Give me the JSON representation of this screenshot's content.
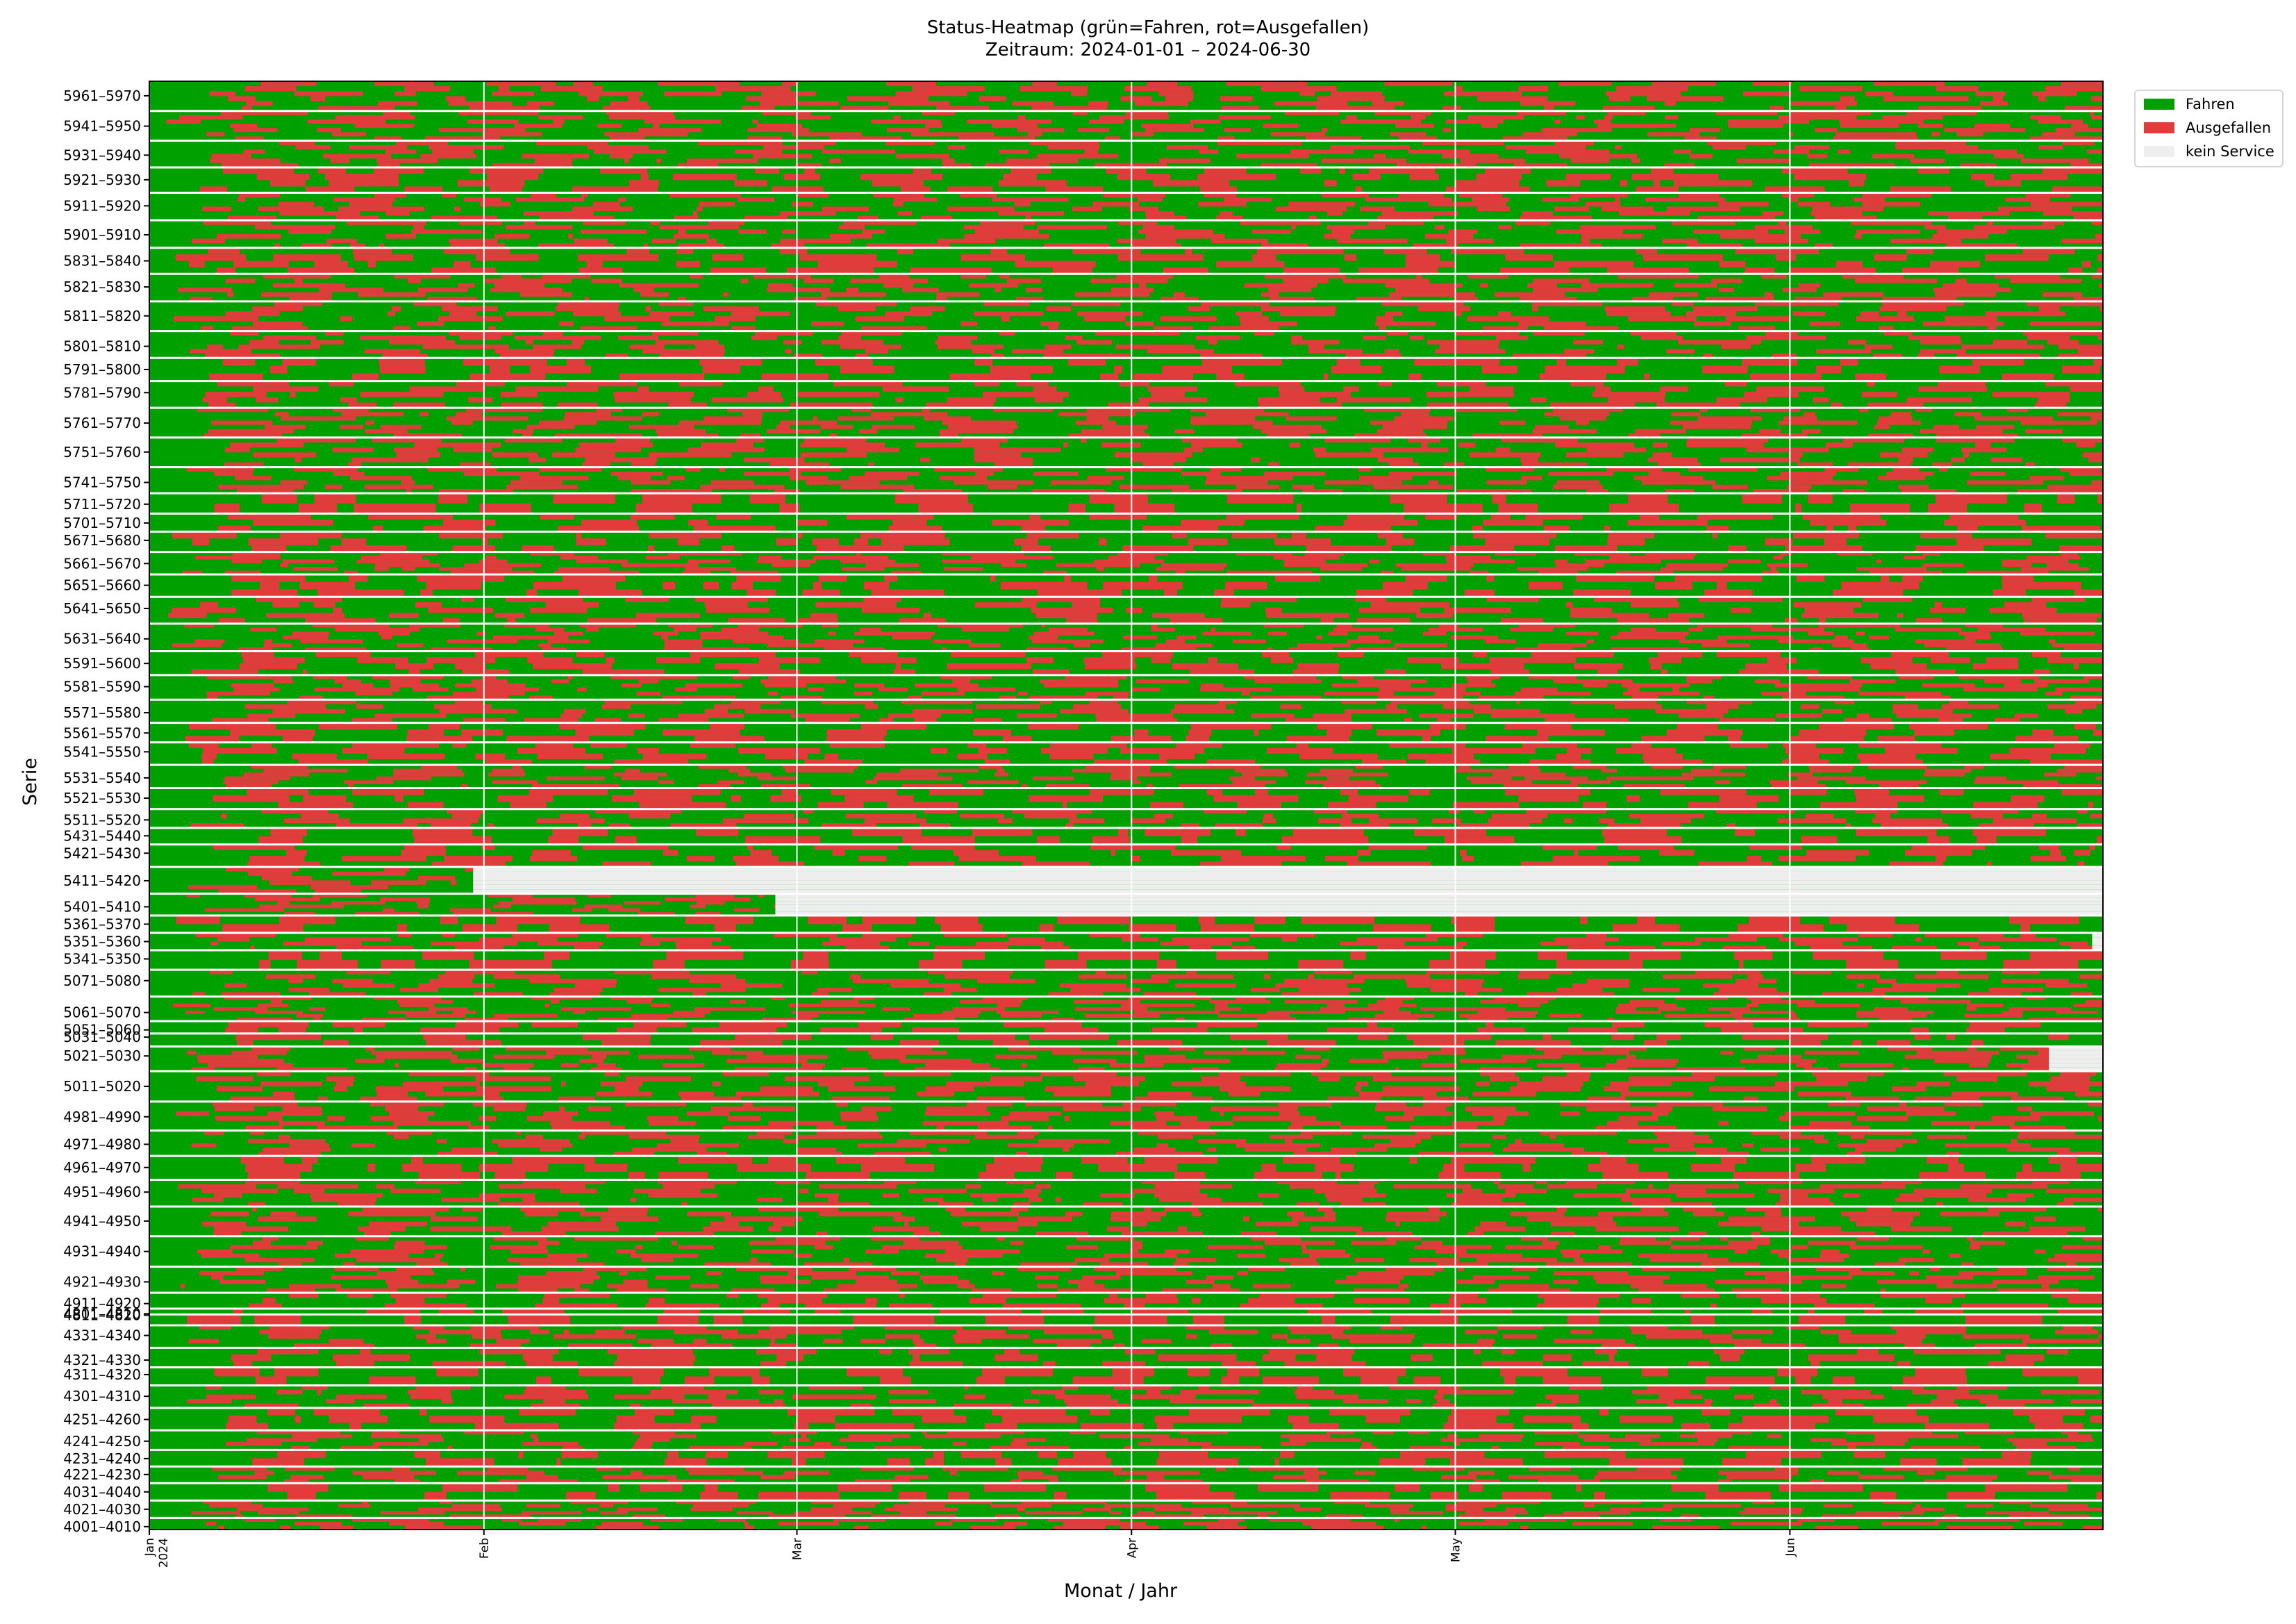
{
  "title_lines": [
    "Status-Heatmap (grün=Fahren, rot=Ausgefallen)",
    "Zeitraum: 2024-01-01 – 2024-06-30"
  ],
  "chart_data": {
    "type": "heatmap",
    "title": "Status-Heatmap (grün=Fahren, rot=Ausgefallen)",
    "subtitle": "Zeitraum: 2024-01-01 – 2024-06-30",
    "xlabel": "Monat / Jahr",
    "ylabel": "Serie",
    "xlim": [
      "2024-01-01",
      "2024-06-30"
    ],
    "x_ticks": [
      {
        "date": "2024-01-01",
        "label": "Jan\n2024"
      },
      {
        "date": "2024-02-01",
        "label": "Feb"
      },
      {
        "date": "2024-03-01",
        "label": "Mar"
      },
      {
        "date": "2024-04-01",
        "label": "Apr"
      },
      {
        "date": "2024-05-01",
        "label": "May"
      },
      {
        "date": "2024-06-01",
        "label": "Jun"
      }
    ],
    "legend": {
      "placement": "upper right outside",
      "entries": [
        {
          "label": "Fahren",
          "color": "#00a000"
        },
        {
          "label": "Ausgefallen",
          "color": "#e03c3c"
        },
        {
          "label": "kein Service",
          "color": "#eeeeee"
        }
      ]
    },
    "colors": {
      "fahren": "#00a000",
      "ausgefallen": "#e03c3c",
      "kein_service": "#eeeeee",
      "separator": "#ffffff"
    },
    "series_groups": [
      {
        "label": "5961–5970",
        "y": 0.99,
        "units": 6
      },
      {
        "label": "5941–5950",
        "y": 0.969,
        "units": 7
      },
      {
        "label": "5931–5940",
        "y": 0.949,
        "units": 6
      },
      {
        "label": "5921–5930",
        "y": 0.932,
        "units": 4
      },
      {
        "label": "5911–5920",
        "y": 0.914,
        "units": 6
      },
      {
        "label": "5901–5910",
        "y": 0.894,
        "units": 6
      },
      {
        "label": "5831–5840",
        "y": 0.876,
        "units": 4
      },
      {
        "label": "5821–5830",
        "y": 0.858,
        "units": 6
      },
      {
        "label": "5811–5820",
        "y": 0.838,
        "units": 6
      },
      {
        "label": "5801–5810",
        "y": 0.817,
        "units": 6
      },
      {
        "label": "5791–5800",
        "y": 0.801,
        "units": 3
      },
      {
        "label": "5781–5790",
        "y": 0.785,
        "units": 5
      },
      {
        "label": "5761–5770",
        "y": 0.764,
        "units": 7
      },
      {
        "label": "5751–5760",
        "y": 0.744,
        "units": 6
      },
      {
        "label": "5741–5750",
        "y": 0.723,
        "units": 6
      },
      {
        "label": "5711–5720",
        "y": 0.708,
        "units": 2
      },
      {
        "label": "5701–5710",
        "y": 0.695,
        "units": 3
      },
      {
        "label": "5671–5680",
        "y": 0.683,
        "units": 3
      },
      {
        "label": "5661–5670",
        "y": 0.667,
        "units": 6
      },
      {
        "label": "5651–5660",
        "y": 0.652,
        "units": 3
      },
      {
        "label": "5641–5650",
        "y": 0.636,
        "units": 5
      },
      {
        "label": "5631–5640",
        "y": 0.615,
        "units": 7
      },
      {
        "label": "5591–5600",
        "y": 0.598,
        "units": 4
      },
      {
        "label": "5581–5590",
        "y": 0.582,
        "units": 6
      },
      {
        "label": "5571–5580",
        "y": 0.564,
        "units": 5
      },
      {
        "label": "5561–5570",
        "y": 0.55,
        "units": 3
      },
      {
        "label": "5541–5550",
        "y": 0.537,
        "units": 4
      },
      {
        "label": "5531–5540",
        "y": 0.519,
        "units": 6
      },
      {
        "label": "5521–5530",
        "y": 0.505,
        "units": 3
      },
      {
        "label": "5511–5520",
        "y": 0.49,
        "units": 4
      },
      {
        "label": "5431–5440",
        "y": 0.479,
        "units": 2
      },
      {
        "label": "5421–5430",
        "y": 0.467,
        "units": 4
      },
      {
        "label": "5411–5420",
        "y": 0.448,
        "units": 6
      },
      {
        "label": "5401–5410",
        "y": 0.43,
        "units": 6
      },
      {
        "label": "5361–5370",
        "y": 0.418,
        "units": 2
      },
      {
        "label": "5351–5360",
        "y": 0.406,
        "units": 4
      },
      {
        "label": "5341–5350",
        "y": 0.394,
        "units": 2
      },
      {
        "label": "5071–5080",
        "y": 0.379,
        "units": 6
      },
      {
        "label": "5061–5070",
        "y": 0.357,
        "units": 7
      },
      {
        "label": "5051–5060",
        "y": 0.345,
        "units": 2
      },
      {
        "label": "5031–5040",
        "y": 0.34,
        "units": 2
      },
      {
        "label": "5021–5030",
        "y": 0.327,
        "units": 6
      },
      {
        "label": "5011–5020",
        "y": 0.306,
        "units": 6
      },
      {
        "label": "4981–4990",
        "y": 0.285,
        "units": 6
      },
      {
        "label": "4971–4980",
        "y": 0.266,
        "units": 6
      },
      {
        "label": "4961–4970",
        "y": 0.25,
        "units": 3
      },
      {
        "label": "4951–4960",
        "y": 0.233,
        "units": 6
      },
      {
        "label": "4941–4950",
        "y": 0.213,
        "units": 6
      },
      {
        "label": "4931–4940",
        "y": 0.192,
        "units": 7
      },
      {
        "label": "4921–4930",
        "y": 0.171,
        "units": 6
      },
      {
        "label": "4911–4920",
        "y": 0.156,
        "units": 3
      },
      {
        "label": "4801–4810",
        "y": 0.149,
        "units": 1
      },
      {
        "label": "4811–4820",
        "y": 0.148,
        "units": 1
      },
      {
        "label": "4331–4340",
        "y": 0.134,
        "units": 5
      },
      {
        "label": "4321–4330",
        "y": 0.117,
        "units": 3
      },
      {
        "label": "4311–4320",
        "y": 0.107,
        "units": 2
      },
      {
        "label": "4301–4310",
        "y": 0.092,
        "units": 5
      },
      {
        "label": "4251–4260",
        "y": 0.076,
        "units": 3
      },
      {
        "label": "4241–4250",
        "y": 0.061,
        "units": 5
      },
      {
        "label": "4231–4240",
        "y": 0.049,
        "units": 2
      },
      {
        "label": "4221–4230",
        "y": 0.038,
        "units": 4
      },
      {
        "label": "4031–4040",
        "y": 0.026,
        "units": 2
      },
      {
        "label": "4021–4030",
        "y": 0.014,
        "units": 5
      },
      {
        "label": "4001–4010",
        "y": 0.002,
        "units": 3
      }
    ],
    "kein_service_periods": [
      {
        "series": "5411–5420",
        "from": "2024-01-31",
        "to": "2024-06-30"
      },
      {
        "series": "5401–5410",
        "from": "2024-02-28",
        "to": "2024-06-30"
      },
      {
        "series": "5351–5360",
        "from": "2024-06-29",
        "to": "2024-06-30"
      },
      {
        "series": "5021–5030",
        "from": "2024-06-25",
        "to": "2024-06-30"
      }
    ]
  }
}
